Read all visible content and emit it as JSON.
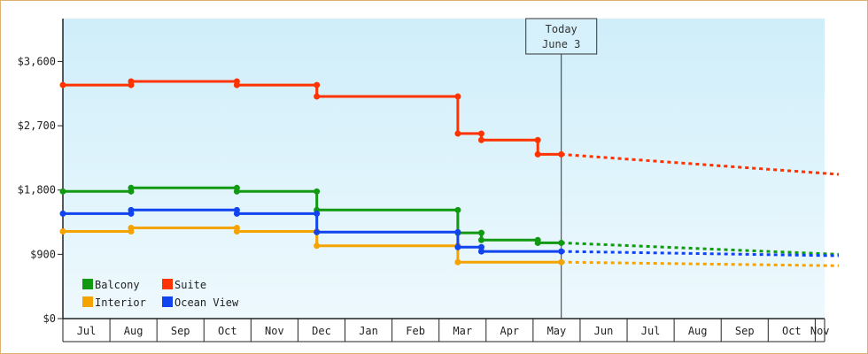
{
  "chart_data": {
    "type": "line",
    "y_ticks": [
      0,
      900,
      1800,
      2700,
      3600
    ],
    "y_tick_labels": [
      "$0",
      "$900",
      "$1,800",
      "$2,700",
      "$3,600"
    ],
    "ylim": [
      0,
      4200
    ],
    "x_months": [
      "Jul",
      "Aug",
      "Sep",
      "Oct",
      "Nov",
      "Dec",
      "Jan",
      "Feb",
      "Mar",
      "Apr",
      "May",
      "Jun",
      "Jul",
      "Aug",
      "Sep",
      "Oct",
      "Nov"
    ],
    "today_label_line1": "Today",
    "today_label_line2": "June 3",
    "today_month_index": 10.6,
    "grid": false,
    "legend_position": "bottom-left",
    "colors": {
      "Balcony": "#119911",
      "Suite": "#ff3300",
      "Interior": "#f5a300",
      "Ocean View": "#1144ee",
      "background_top": "#cfeefa",
      "background_bottom": "#eef9fd"
    },
    "series": [
      {
        "name": "Balcony",
        "color": "#119911",
        "points": [
          [
            0.0,
            1780
          ],
          [
            1.45,
            1780
          ],
          [
            1.45,
            1830
          ],
          [
            3.7,
            1830
          ],
          [
            3.7,
            1780
          ],
          [
            5.4,
            1780
          ],
          [
            5.4,
            1520
          ],
          [
            8.4,
            1520
          ],
          [
            8.4,
            1200
          ],
          [
            8.9,
            1200
          ],
          [
            8.9,
            1100
          ],
          [
            10.1,
            1100
          ],
          [
            10.1,
            1060
          ],
          [
            10.6,
            1060
          ]
        ],
        "markers": [
          [
            0.0,
            1780
          ],
          [
            1.45,
            1780
          ],
          [
            1.45,
            1830
          ],
          [
            3.7,
            1830
          ],
          [
            3.7,
            1780
          ],
          [
            5.4,
            1780
          ],
          [
            5.4,
            1520
          ],
          [
            8.4,
            1520
          ],
          [
            8.4,
            1200
          ],
          [
            8.9,
            1200
          ],
          [
            8.9,
            1100
          ],
          [
            10.1,
            1100
          ],
          [
            10.1,
            1060
          ],
          [
            10.6,
            1060
          ]
        ],
        "projection": [
          [
            10.6,
            1060
          ],
          [
            16.5,
            900
          ]
        ]
      },
      {
        "name": "Suite",
        "color": "#ff3300",
        "points": [
          [
            0.0,
            3270
          ],
          [
            1.45,
            3270
          ],
          [
            1.45,
            3320
          ],
          [
            3.7,
            3320
          ],
          [
            3.7,
            3270
          ],
          [
            5.4,
            3270
          ],
          [
            5.4,
            3110
          ],
          [
            8.4,
            3110
          ],
          [
            8.4,
            2590
          ],
          [
            8.9,
            2590
          ],
          [
            8.9,
            2500
          ],
          [
            10.1,
            2500
          ],
          [
            10.1,
            2300
          ],
          [
            10.6,
            2300
          ]
        ],
        "markers": [
          [
            0.0,
            3270
          ],
          [
            1.45,
            3270
          ],
          [
            1.45,
            3320
          ],
          [
            3.7,
            3320
          ],
          [
            3.7,
            3270
          ],
          [
            5.4,
            3270
          ],
          [
            5.4,
            3110
          ],
          [
            8.4,
            3110
          ],
          [
            8.4,
            2590
          ],
          [
            8.9,
            2590
          ],
          [
            8.9,
            2500
          ],
          [
            10.1,
            2500
          ],
          [
            10.1,
            2300
          ],
          [
            10.6,
            2300
          ]
        ],
        "projection": [
          [
            10.6,
            2300
          ],
          [
            16.5,
            2020
          ]
        ]
      },
      {
        "name": "Interior",
        "color": "#f5a300",
        "points": [
          [
            0.0,
            1220
          ],
          [
            1.45,
            1220
          ],
          [
            1.45,
            1270
          ],
          [
            3.7,
            1270
          ],
          [
            3.7,
            1220
          ],
          [
            5.4,
            1220
          ],
          [
            5.4,
            1020
          ],
          [
            8.4,
            1020
          ],
          [
            8.4,
            790
          ],
          [
            10.6,
            790
          ]
        ],
        "markers": [
          [
            0.0,
            1220
          ],
          [
            1.45,
            1220
          ],
          [
            1.45,
            1270
          ],
          [
            3.7,
            1270
          ],
          [
            3.7,
            1220
          ],
          [
            5.4,
            1220
          ],
          [
            5.4,
            1020
          ],
          [
            8.4,
            1020
          ],
          [
            8.4,
            790
          ],
          [
            10.6,
            790
          ]
        ],
        "projection": [
          [
            10.6,
            790
          ],
          [
            16.5,
            740
          ]
        ]
      },
      {
        "name": "Ocean View",
        "color": "#1144ee",
        "points": [
          [
            0.0,
            1470
          ],
          [
            1.45,
            1470
          ],
          [
            1.45,
            1520
          ],
          [
            3.7,
            1520
          ],
          [
            3.7,
            1470
          ],
          [
            5.4,
            1470
          ],
          [
            5.4,
            1210
          ],
          [
            8.4,
            1210
          ],
          [
            8.4,
            1000
          ],
          [
            8.9,
            1000
          ],
          [
            8.9,
            940
          ],
          [
            10.6,
            940
          ]
        ],
        "markers": [
          [
            0.0,
            1470
          ],
          [
            1.45,
            1470
          ],
          [
            1.45,
            1520
          ],
          [
            3.7,
            1520
          ],
          [
            3.7,
            1470
          ],
          [
            5.4,
            1470
          ],
          [
            5.4,
            1210
          ],
          [
            8.4,
            1210
          ],
          [
            8.4,
            1000
          ],
          [
            8.9,
            1000
          ],
          [
            8.9,
            940
          ],
          [
            10.6,
            940
          ]
        ],
        "projection": [
          [
            10.6,
            940
          ],
          [
            16.5,
            880
          ]
        ]
      }
    ],
    "legend": [
      {
        "name": "Balcony",
        "color": "#119911"
      },
      {
        "name": "Suite",
        "color": "#ff3300"
      },
      {
        "name": "Interior",
        "color": "#f5a300"
      },
      {
        "name": "Ocean View",
        "color": "#1144ee"
      }
    ]
  }
}
